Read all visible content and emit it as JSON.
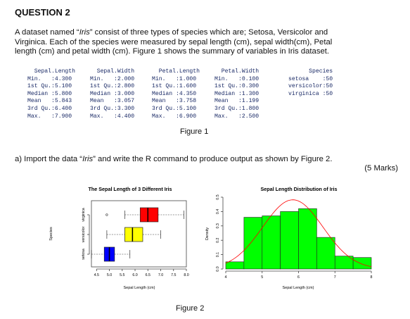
{
  "question": {
    "title": "QUESTION 2",
    "paragraph": {
      "l1_pre": "A dataset named “",
      "l1_em": "Iris",
      "l1_post": "” consist of three types of species which are; Setosa, Versicolor and",
      "l2": "Virginica. Each of the species were measured by sepal length (cm), sepal width(cm), Petal",
      "l3": "length (cm) and petal width (cm). Figure 1 shows the summary of variables in Iris dataset."
    },
    "summary_columns": [
      {
        "lines": [
          "  Sepal.Length",
          "Min.   :4.300",
          "1st Qu.:5.100",
          "Median :5.800",
          "Mean   :5.843",
          "3rd Qu.:6.400",
          "Max.   :7.900"
        ]
      },
      {
        "lines": [
          "  Sepal.Width",
          "Min.   :2.000",
          "1st Qu.:2.800",
          "Median :3.000",
          "Mean   :3.057",
          "3rd Qu.:3.300",
          "Max.   :4.400"
        ]
      },
      {
        "lines": "  Petal.Length\nMin.   :1.000\n1st Qu.:1.600\nMedian :4.350\nMean   :3.758\n3rd Qu.:5.100\nMax.   :6.900"
      },
      {
        "lines": "  Petal.Width\nMin.   :0.100\n1st Qu.:0.300\nMedian :1.300\nMean   :1.199\n3rd Qu.:1.800\nMax.   :2.500"
      },
      {
        "lines": "      Species\nsetosa    :50\nversicolor:50\nvirginica :50"
      }
    ],
    "figure1_caption": "Figure 1",
    "part_a_pre": "a)  Import the data “",
    "part_a_em": "Iris",
    "part_a_post": "” and write the R command to produce output as shown by Figure 2.",
    "part_a_marks": "(5 Marks)",
    "figure2_caption": "Figure 2"
  },
  "chart_data": [
    {
      "type": "boxplot",
      "title": "The Sepal Length of 3 Different Iris",
      "xlabel": "Sepal Length (cm)",
      "ylabel": "Species",
      "categories": [
        "setosa",
        "versicolor",
        "virginica"
      ],
      "xticks": [
        "4.5",
        "5.0",
        "5.5",
        "6.0",
        "6.5",
        "7.0",
        "7.5",
        "8.0"
      ],
      "xlim": [
        4.3,
        8.0
      ],
      "boxes": [
        {
          "name": "setosa",
          "color": "#0000ff",
          "min": 4.3,
          "q1": 4.8,
          "median": 5.0,
          "q3": 5.2,
          "max": 5.8,
          "outliers": []
        },
        {
          "name": "versicolor",
          "color": "#ffff00",
          "min": 4.9,
          "q1": 5.6,
          "median": 5.9,
          "q3": 6.3,
          "max": 7.0,
          "outliers": []
        },
        {
          "name": "virginica",
          "color": "#ff0000",
          "min": 5.6,
          "q1": 6.2,
          "median": 6.5,
          "q3": 6.9,
          "max": 7.9,
          "outliers": [
            4.9
          ]
        }
      ]
    },
    {
      "type": "histogram",
      "title": "Sepal Length Distribution of Iris",
      "xlabel": "Sepal Length (cm)",
      "ylabel": "Density",
      "bar_color": "#00ff00",
      "curve_color": "#ff0000",
      "bins": [
        {
          "x0": 4.0,
          "x1": 4.5,
          "density": 0.05
        },
        {
          "x0": 4.5,
          "x1": 5.0,
          "density": 0.36
        },
        {
          "x0": 5.0,
          "x1": 5.5,
          "density": 0.37
        },
        {
          "x0": 5.5,
          "x1": 6.0,
          "density": 0.4
        },
        {
          "x0": 6.0,
          "x1": 6.5,
          "density": 0.42
        },
        {
          "x0": 6.5,
          "x1": 7.0,
          "density": 0.22
        },
        {
          "x0": 7.0,
          "x1": 7.5,
          "density": 0.09
        },
        {
          "x0": 7.5,
          "x1": 8.0,
          "density": 0.08
        }
      ],
      "xticks": [
        "4",
        "5",
        "6",
        "7",
        "8"
      ],
      "yticks": [
        "0.0",
        "0.1",
        "0.2",
        "0.3",
        "0.4",
        "0.5"
      ],
      "xlim": [
        4,
        8
      ],
      "ylim": [
        0,
        0.5
      ],
      "normal_curve": {
        "mean": 5.843,
        "sd": 0.828
      }
    }
  ]
}
